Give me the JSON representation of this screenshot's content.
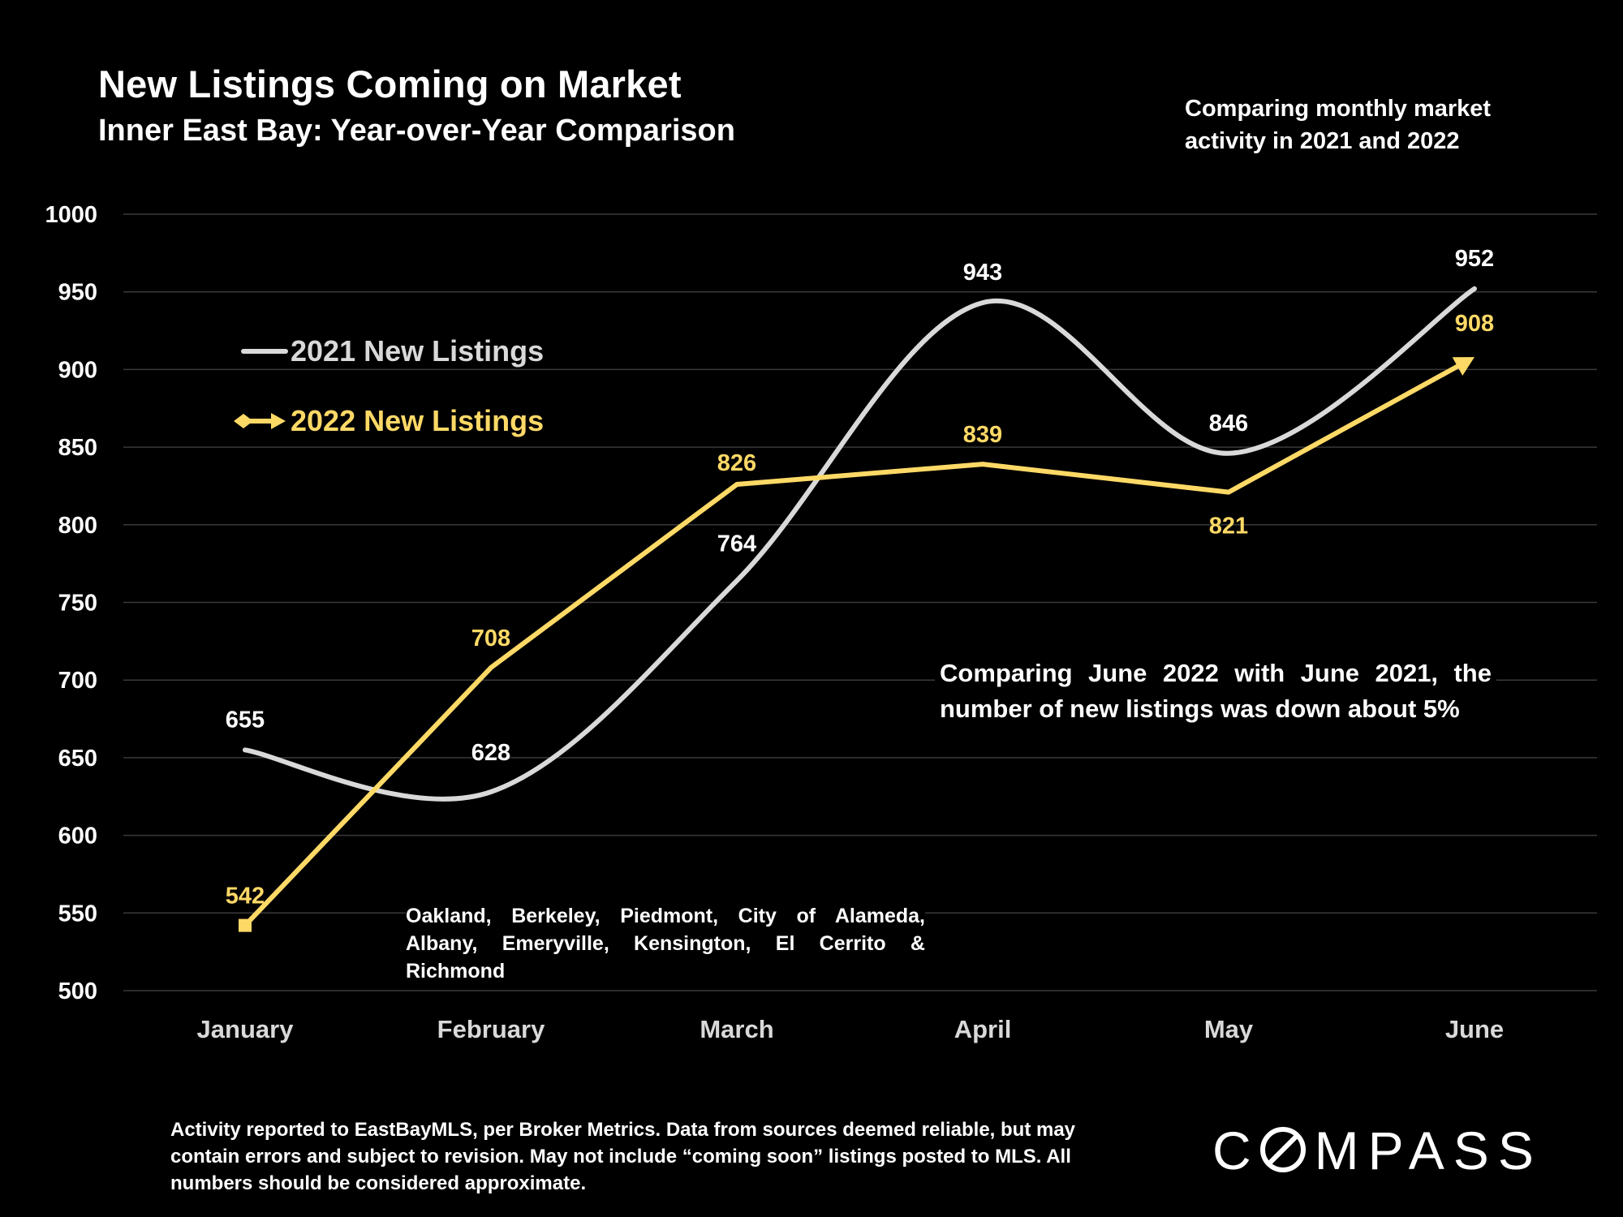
{
  "header": {
    "title": "New Listings Coming on Market",
    "subtitle": "Inner East Bay: Year-over-Year Comparison",
    "note": "Comparing monthly market activity in 2021 and 2022"
  },
  "annotations": {
    "callout": "Comparing June 2022 with June 2021, the number of new listings was down about 5%",
    "cities": "Oakland, Berkeley, Piedmont, City of Alameda, Albany, Emeryville, Kensington, El Cerrito & Richmond"
  },
  "footer": {
    "disclaimer": "Activity reported to EastBayMLS, per Broker Metrics. Data from sources deemed reliable, but may contain errors and subject to revision. May not include “coming soon” listings posted to MLS. All numbers should be considered approximate.",
    "logo_text": "COMPASS"
  },
  "colors": {
    "background": "#000000",
    "series_2021": "#d9d9d9",
    "series_2022": "#ffd966",
    "gridline": "#3a3a3a",
    "text": "#ffffff"
  },
  "chart_data": {
    "type": "line",
    "categories": [
      "January",
      "February",
      "March",
      "April",
      "May",
      "June"
    ],
    "ylim": [
      500,
      1000
    ],
    "yticks": [
      500,
      550,
      600,
      650,
      700,
      750,
      800,
      850,
      900,
      950,
      1000
    ],
    "grid": true,
    "legend_position": "top-left",
    "series": [
      {
        "name": "2021 New Listings",
        "values": [
          655,
          628,
          764,
          943,
          846,
          952
        ],
        "color": "#d9d9d9",
        "smooth": true
      },
      {
        "name": "2022 New Listings",
        "values": [
          542,
          708,
          826,
          839,
          821,
          908
        ],
        "color": "#ffd966",
        "smooth": false
      }
    ]
  }
}
